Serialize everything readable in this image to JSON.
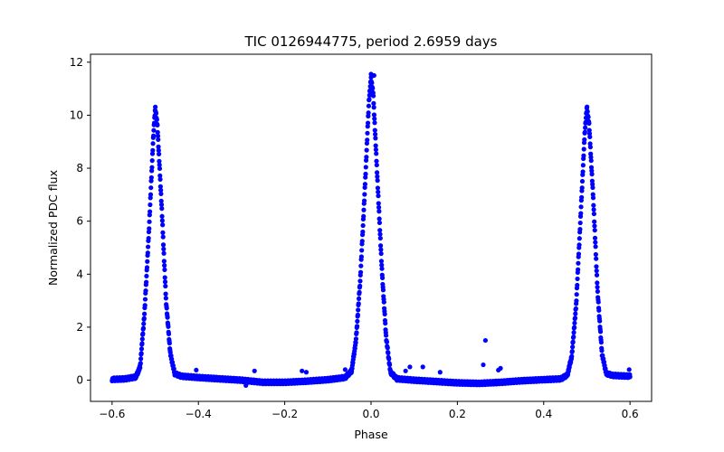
{
  "chart_data": {
    "type": "scatter",
    "title": "TIC 0126944775, period 2.6959 days",
    "xlabel": "Phase",
    "ylabel": "Normalized PDC flux",
    "xlim": [
      -0.65,
      0.65
    ],
    "ylim": [
      -0.8,
      12.3
    ],
    "grid": false,
    "marker_color": "#0000ff",
    "x_ticks": [
      -0.6,
      -0.4,
      -0.2,
      0.0,
      0.2,
      0.4,
      0.6
    ],
    "x_tick_labels": [
      "−0.6",
      "−0.4",
      "−0.2",
      "0.0",
      "0.2",
      "0.4",
      "0.6"
    ],
    "y_ticks": [
      0,
      2,
      4,
      6,
      8,
      10,
      12
    ],
    "y_tick_labels": [
      "0",
      "2",
      "4",
      "6",
      "8",
      "10",
      "12"
    ],
    "series": [
      {
        "style": "dense light-curve cloud",
        "points": [
          [
            -0.6,
            0.03
          ],
          [
            -0.57,
            0.05
          ],
          [
            -0.545,
            0.12
          ],
          [
            -0.535,
            0.5
          ],
          [
            -0.525,
            2.5
          ],
          [
            -0.515,
            5.5
          ],
          [
            -0.505,
            9.0
          ],
          [
            -0.5,
            10.3
          ],
          [
            -0.495,
            9.6
          ],
          [
            -0.485,
            6.5
          ],
          [
            -0.475,
            3.0
          ],
          [
            -0.465,
            1.0
          ],
          [
            -0.455,
            0.25
          ],
          [
            -0.44,
            0.15
          ],
          [
            -0.4,
            0.1
          ],
          [
            -0.35,
            0.05
          ],
          [
            -0.3,
            0.0
          ],
          [
            -0.25,
            -0.08
          ],
          [
            -0.2,
            -0.08
          ],
          [
            -0.15,
            -0.04
          ],
          [
            -0.1,
            0.02
          ],
          [
            -0.06,
            0.1
          ],
          [
            -0.045,
            0.35
          ],
          [
            -0.035,
            1.5
          ],
          [
            -0.025,
            3.8
          ],
          [
            -0.015,
            7.0
          ],
          [
            -0.005,
            10.5
          ],
          [
            0.0,
            11.4
          ],
          [
            0.005,
            10.8
          ],
          [
            0.015,
            7.5
          ],
          [
            0.025,
            4.2
          ],
          [
            0.035,
            1.6
          ],
          [
            0.045,
            0.3
          ],
          [
            0.06,
            0.05
          ],
          [
            0.1,
            0.0
          ],
          [
            0.15,
            -0.05
          ],
          [
            0.2,
            -0.1
          ],
          [
            0.25,
            -0.12
          ],
          [
            0.3,
            -0.08
          ],
          [
            0.35,
            -0.02
          ],
          [
            0.4,
            0.02
          ],
          [
            0.44,
            0.05
          ],
          [
            0.455,
            0.2
          ],
          [
            0.465,
            0.9
          ],
          [
            0.475,
            2.8
          ],
          [
            0.485,
            6.0
          ],
          [
            0.495,
            9.3
          ],
          [
            0.5,
            10.3
          ],
          [
            0.505,
            9.7
          ],
          [
            0.515,
            6.8
          ],
          [
            0.525,
            3.3
          ],
          [
            0.535,
            1.0
          ],
          [
            0.545,
            0.25
          ],
          [
            0.56,
            0.18
          ],
          [
            0.6,
            0.15
          ]
        ]
      },
      {
        "style": "scatter outliers",
        "points": [
          [
            0.0,
            11.55
          ],
          [
            0.007,
            11.5
          ],
          [
            0.265,
            1.5
          ],
          [
            0.26,
            0.58
          ],
          [
            0.3,
            0.45
          ],
          [
            0.295,
            0.38
          ],
          [
            0.09,
            0.5
          ],
          [
            0.12,
            0.5
          ],
          [
            0.08,
            0.35
          ],
          [
            0.16,
            0.3
          ],
          [
            -0.27,
            0.35
          ],
          [
            -0.16,
            0.35
          ],
          [
            -0.15,
            0.3
          ],
          [
            -0.405,
            0.38
          ],
          [
            -0.06,
            0.4
          ],
          [
            -0.05,
            0.3
          ],
          [
            0.598,
            0.4
          ],
          [
            -0.29,
            -0.2
          ]
        ]
      }
    ]
  }
}
